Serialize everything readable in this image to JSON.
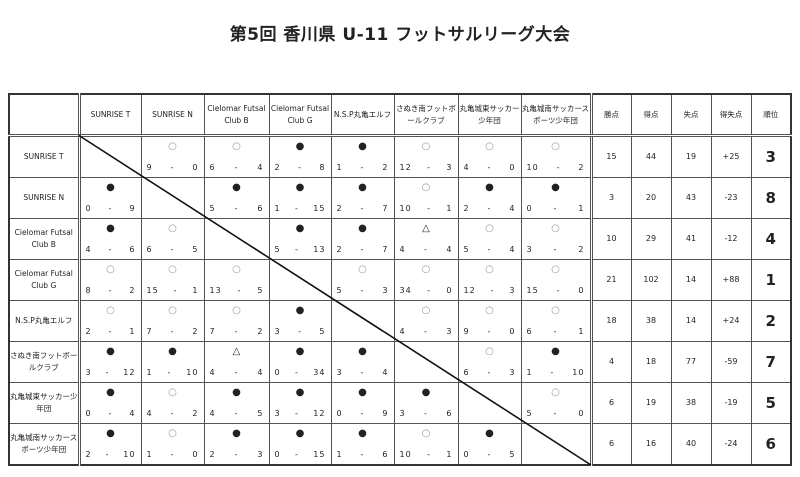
{
  "title": "第5回 香川県 U-11 フットサルリーグ大会",
  "teams": [
    "SUNRISE T",
    "SUNRISE N",
    "Cielomar Futsal Club B",
    "Cielomar Futsal Club G",
    "N.S.P丸亀エルフ",
    "さぬき南フットボールクラブ",
    "丸亀城東サッカー少年団",
    "丸亀城南サッカースポーツ少年団"
  ],
  "col_headers": [
    "SUNRISE T",
    "SUNRISE N",
    "Cielomar Futsal Club B",
    "Cielomar Futsal Club G",
    "N.S.P丸亀エルフ",
    "さぬき南フットボールクラブ",
    "丸亀城東サッカー少年団",
    "丸亀城南サッカースポーツ少年団"
  ],
  "stat_headers": [
    "勝点",
    "得点",
    "失点",
    "得失点",
    "順位"
  ],
  "symbols": {
    "win": "○",
    "loss": "●",
    "draw": "△"
  },
  "rows": [
    {
      "results": [
        null,
        [
          "win",
          "9",
          "0"
        ],
        [
          "win",
          "6",
          "4"
        ],
        [
          "loss",
          "2",
          "8"
        ],
        [
          "loss",
          "1",
          "2"
        ],
        [
          "win",
          "12",
          "3"
        ],
        [
          "win",
          "4",
          "0"
        ],
        [
          "win",
          "10",
          "2"
        ]
      ],
      "stats": [
        "15",
        "44",
        "19",
        "+25",
        "3"
      ]
    },
    {
      "results": [
        [
          "loss",
          "0",
          "9"
        ],
        null,
        [
          "loss",
          "5",
          "6"
        ],
        [
          "loss",
          "1",
          "15"
        ],
        [
          "loss",
          "2",
          "7"
        ],
        [
          "win",
          "10",
          "1"
        ],
        [
          "loss",
          "2",
          "4"
        ],
        [
          "loss",
          "0",
          "1"
        ]
      ],
      "stats": [
        "3",
        "20",
        "43",
        "-23",
        "8"
      ]
    },
    {
      "results": [
        [
          "loss",
          "4",
          "6"
        ],
        [
          "win",
          "6",
          "5"
        ],
        null,
        [
          "loss",
          "5",
          "13"
        ],
        [
          "loss",
          "2",
          "7"
        ],
        [
          "draw",
          "4",
          "4"
        ],
        [
          "win",
          "5",
          "4"
        ],
        [
          "win",
          "3",
          "2"
        ]
      ],
      "stats": [
        "10",
        "29",
        "41",
        "-12",
        "4"
      ]
    },
    {
      "results": [
        [
          "win",
          "8",
          "2"
        ],
        [
          "win",
          "15",
          "1"
        ],
        [
          "win",
          "13",
          "5"
        ],
        null,
        [
          "win",
          "5",
          "3"
        ],
        [
          "win",
          "34",
          "0"
        ],
        [
          "win",
          "12",
          "3"
        ],
        [
          "win",
          "15",
          "0"
        ]
      ],
      "stats": [
        "21",
        "102",
        "14",
        "+88",
        "1"
      ]
    },
    {
      "results": [
        [
          "win",
          "2",
          "1"
        ],
        [
          "win",
          "7",
          "2"
        ],
        [
          "win",
          "7",
          "2"
        ],
        [
          "loss",
          "3",
          "5"
        ],
        null,
        [
          "win",
          "4",
          "3"
        ],
        [
          "win",
          "9",
          "0"
        ],
        [
          "win",
          "6",
          "1"
        ]
      ],
      "stats": [
        "18",
        "38",
        "14",
        "+24",
        "2"
      ]
    },
    {
      "results": [
        [
          "loss",
          "3",
          "12"
        ],
        [
          "loss",
          "1",
          "10"
        ],
        [
          "draw",
          "4",
          "4"
        ],
        [
          "loss",
          "0",
          "34"
        ],
        [
          "loss",
          "3",
          "4"
        ],
        null,
        [
          "win",
          "6",
          "3"
        ],
        [
          "loss",
          "1",
          "10"
        ]
      ],
      "stats": [
        "4",
        "18",
        "77",
        "-59",
        "7"
      ]
    },
    {
      "results": [
        [
          "loss",
          "0",
          "4"
        ],
        [
          "win",
          "4",
          "2"
        ],
        [
          "loss",
          "4",
          "5"
        ],
        [
          "loss",
          "3",
          "12"
        ],
        [
          "loss",
          "0",
          "9"
        ],
        [
          "loss",
          "3",
          "6"
        ],
        null,
        [
          "win",
          "5",
          "0"
        ]
      ],
      "stats": [
        "6",
        "19",
        "38",
        "-19",
        "5"
      ]
    },
    {
      "results": [
        [
          "loss",
          "2",
          "10"
        ],
        [
          "win",
          "1",
          "0"
        ],
        [
          "loss",
          "2",
          "3"
        ],
        [
          "loss",
          "0",
          "15"
        ],
        [
          "loss",
          "1",
          "6"
        ],
        [
          "win",
          "10",
          "1"
        ],
        [
          "loss",
          "0",
          "5"
        ],
        null
      ],
      "stats": [
        "6",
        "16",
        "40",
        "-24",
        "6"
      ]
    }
  ]
}
